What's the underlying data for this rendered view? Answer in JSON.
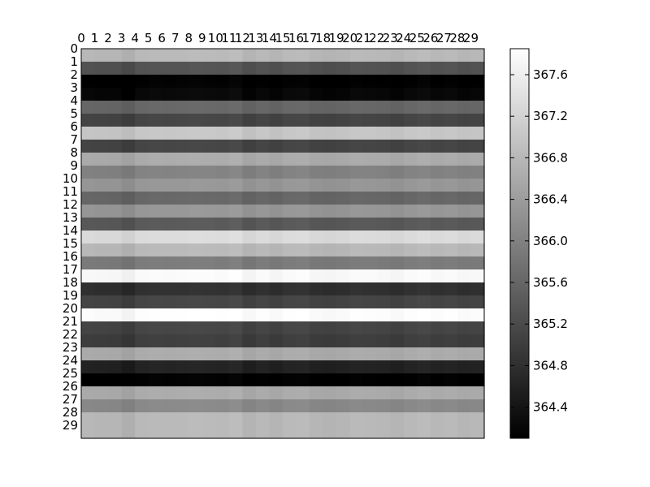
{
  "chart_data": {
    "type": "heatmap",
    "colormap": "gray",
    "x_categories": [
      "0",
      "1",
      "2",
      "3",
      "4",
      "5",
      "6",
      "7",
      "8",
      "9",
      "10",
      "11",
      "12",
      "13",
      "14",
      "15",
      "16",
      "17",
      "18",
      "19",
      "20",
      "21",
      "22",
      "23",
      "24",
      "25",
      "26",
      "27",
      "28",
      "29"
    ],
    "y_categories": [
      "0",
      "1",
      "2",
      "3",
      "4",
      "5",
      "6",
      "7",
      "8",
      "9",
      "10",
      "11",
      "12",
      "13",
      "14",
      "15",
      "16",
      "17",
      "18",
      "19",
      "20",
      "21",
      "22",
      "23",
      "24",
      "25",
      "26",
      "27",
      "28",
      "29"
    ],
    "x_axis_position": "top",
    "row_values": [
      366.8,
      365.3,
      364.1,
      364.2,
      365.6,
      365.1,
      367.0,
      365.1,
      366.6,
      366.0,
      366.3,
      365.6,
      366.3,
      365.4,
      367.3,
      366.8,
      365.9,
      367.75,
      364.8,
      365.1,
      367.8,
      365.1,
      365.0,
      366.6,
      364.6,
      364.1,
      366.6,
      366.1,
      366.8,
      366.8
    ],
    "column_offsets": [
      0.0,
      -0.02,
      -0.03,
      -0.12,
      0.02,
      0.04,
      0.03,
      0.04,
      0.06,
      0.05,
      0.03,
      0.08,
      -0.06,
      0.02,
      -0.04,
      0.03,
      0.05,
      -0.03,
      -0.05,
      -0.02,
      0.03,
      0.02,
      0.0,
      -0.04,
      0.02,
      0.06,
      0.0,
      0.03,
      -0.02,
      0.0
    ],
    "colorbar": {
      "vmin": 364.1,
      "vmax": 367.85,
      "ticks": [
        364.4,
        364.8,
        365.2,
        365.6,
        366.0,
        366.4,
        366.8,
        367.2,
        367.6
      ],
      "tick_labels": [
        "364.4",
        "364.8",
        "365.2",
        "365.6",
        "366.0",
        "366.4",
        "366.8",
        "367.2",
        "367.6"
      ]
    },
    "title": "",
    "xlabel": "",
    "ylabel": ""
  }
}
